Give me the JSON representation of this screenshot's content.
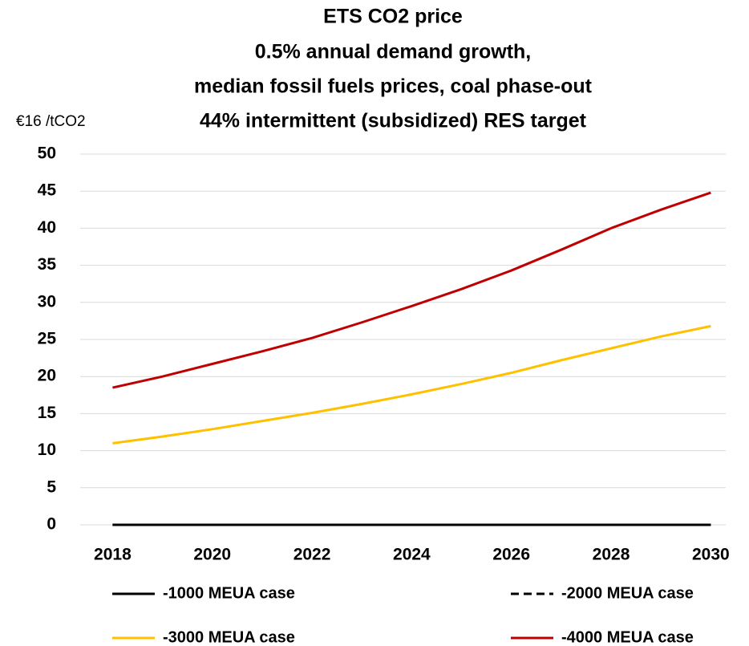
{
  "chart_data": {
    "type": "line",
    "title": [
      "ETS CO2 price",
      "0.5% annual demand growth,",
      "median fossil fuels prices, coal phase-out",
      "44% intermittent (subsidized) RES target"
    ],
    "y_label": "€16 /tCO2",
    "x": [
      2018,
      2019,
      2020,
      2021,
      2022,
      2023,
      2024,
      2025,
      2026,
      2027,
      2028,
      2029,
      2030
    ],
    "xlim": [
      2017.35,
      2030.3
    ],
    "xticks": [
      2018,
      2020,
      2022,
      2024,
      2026,
      2028,
      2030
    ],
    "ylim": [
      0,
      50
    ],
    "yticks": [
      0,
      5,
      10,
      15,
      20,
      25,
      30,
      35,
      40,
      45,
      50
    ],
    "grid": true,
    "series": [
      {
        "name": "-1000 MEUA case",
        "color": "#000000",
        "dashed": false,
        "values": [
          0,
          0,
          0,
          0,
          0,
          0,
          0,
          0,
          0,
          0,
          0,
          0,
          0
        ]
      },
      {
        "name": "-2000 MEUA case",
        "color": "#000000",
        "dashed": true,
        "values": [
          0,
          0,
          0,
          0,
          0,
          0,
          0,
          0,
          0,
          0,
          0,
          0,
          0
        ]
      },
      {
        "name": "-3000 MEUA case",
        "color": "#ffc000",
        "dashed": false,
        "values": [
          11.0,
          11.9,
          12.9,
          14.0,
          15.1,
          16.3,
          17.6,
          19.0,
          20.5,
          22.2,
          23.8,
          25.4,
          26.8
        ]
      },
      {
        "name": "-4000 MEUA case",
        "color": "#c00000",
        "dashed": false,
        "values": [
          18.5,
          20.0,
          21.7,
          23.4,
          25.2,
          27.3,
          29.5,
          31.8,
          34.3,
          37.1,
          40.0,
          42.5,
          44.8
        ]
      }
    ]
  }
}
